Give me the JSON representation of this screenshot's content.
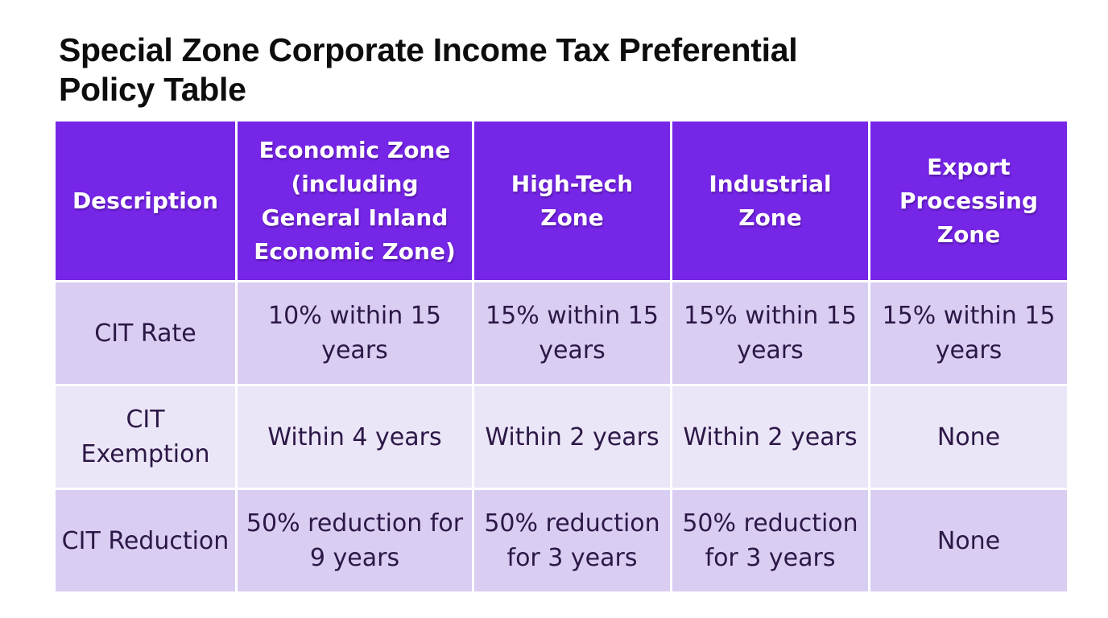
{
  "header": {
    "title": "Special Zone Corporate Income Tax Preferential Policy Table"
  },
  "table": {
    "columns": [
      "Description",
      "Economic Zone (including General Inland Economic Zone)",
      "High-Tech Zone",
      "Industrial Zone",
      "Export Processing Zone"
    ],
    "rows": [
      [
        "CIT Rate",
        "10% within 15 years",
        "15% within 15 years",
        "15% within 15 years",
        "15% within 15 years"
      ],
      [
        "CIT Exemption",
        "Within 4 years",
        "Within 2 years",
        "Within 2 years",
        "None"
      ],
      [
        "CIT Reduction",
        "50% reduction for 9 years",
        "50% reduction for 3 years",
        "50% reduction for 3 years",
        "None"
      ]
    ]
  }
}
